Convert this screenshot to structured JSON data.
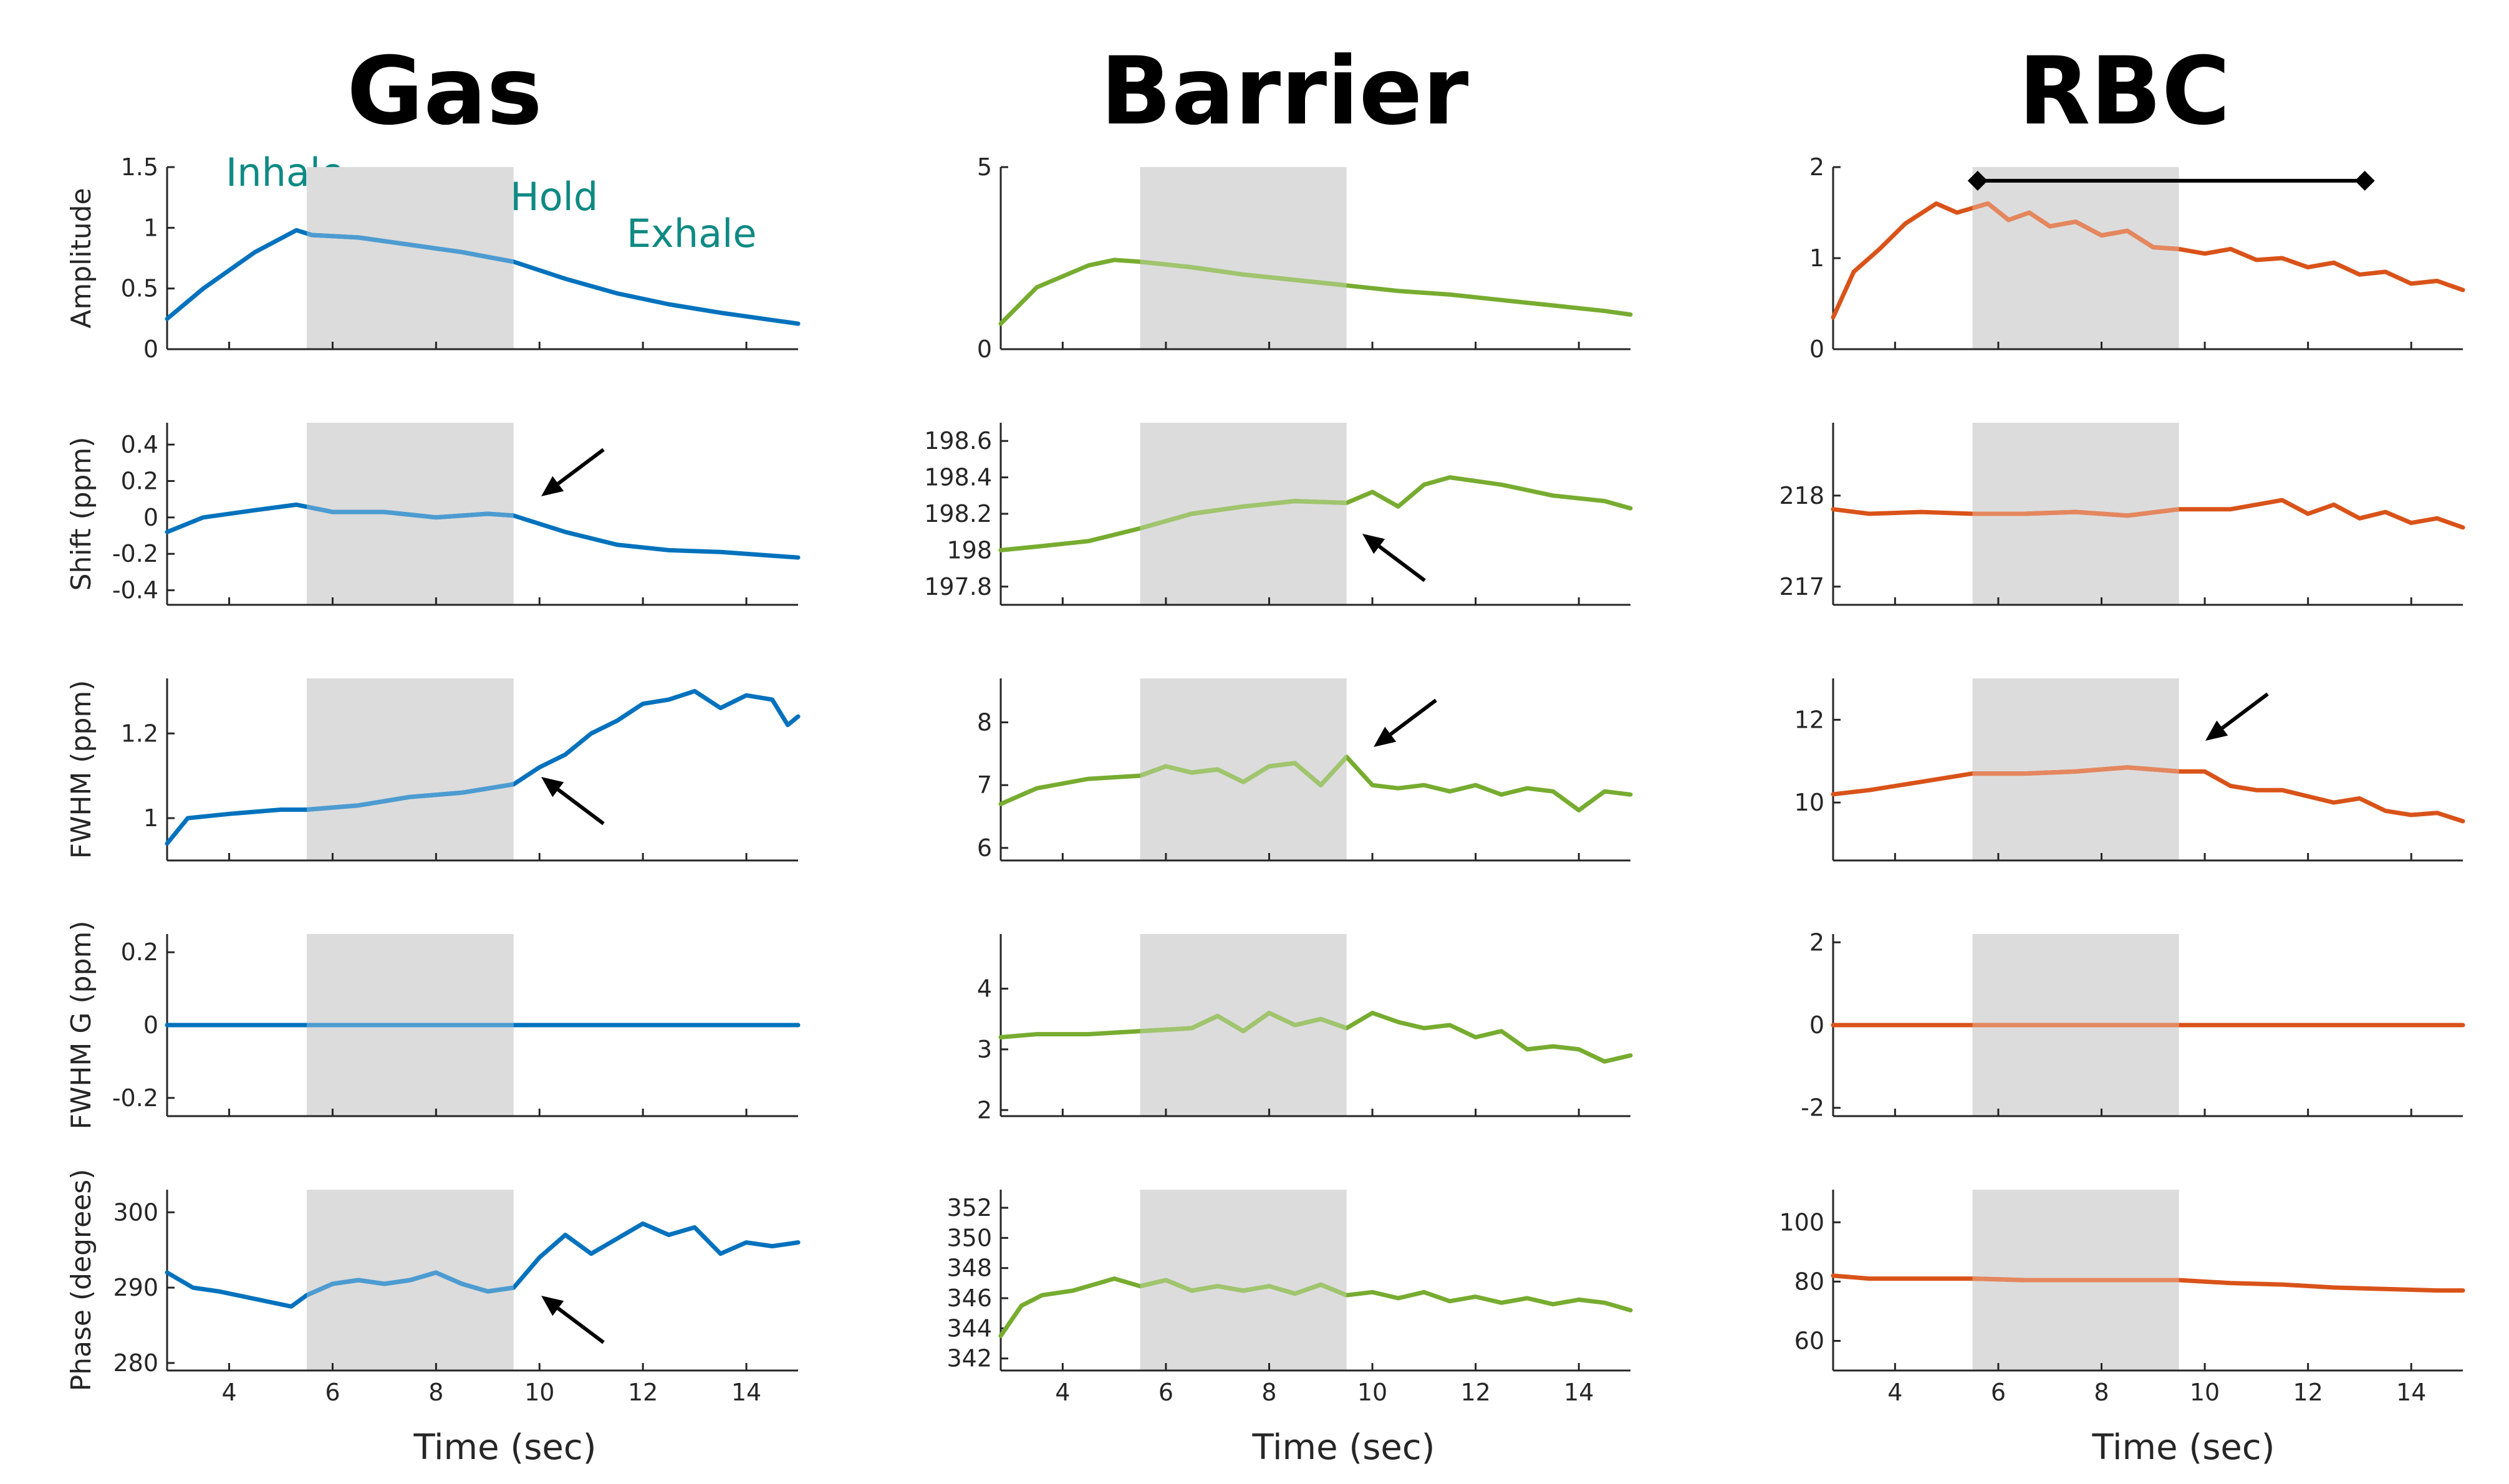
{
  "figure": {
    "columns": [
      "Gas",
      "Barrier",
      "RBC"
    ],
    "xlabel": "Time (sec)",
    "xlim": [
      2.8,
      15
    ],
    "xticks": [
      4,
      6,
      8,
      10,
      12,
      14
    ],
    "breath_hold_window": [
      5.5,
      9.5
    ],
    "phase_labels": [
      "Inhale",
      "Breath Hold",
      "Exhale"
    ]
  },
  "chart_data": [
    {
      "type": "line",
      "column": "Gas",
      "ylabel": "Amplitude",
      "color": "#0072bd",
      "ylim": [
        0,
        1.5
      ],
      "yticks": [
        0,
        0.5,
        1,
        1.5
      ],
      "yticklabels": [
        "0",
        "0.5",
        "1",
        "1.5"
      ],
      "series": [
        {
          "name": "Gas Amplitude",
          "x": [
            2.8,
            3.5,
            4.5,
            5.3,
            5.6,
            6.5,
            7.5,
            8.5,
            9.5,
            10.5,
            11.5,
            12.5,
            13.5,
            14.5,
            15
          ],
          "y": [
            0.25,
            0.5,
            0.8,
            0.98,
            0.94,
            0.92,
            0.86,
            0.8,
            0.72,
            0.58,
            0.46,
            0.37,
            0.3,
            0.24,
            0.21
          ]
        }
      ]
    },
    {
      "type": "line",
      "column": "Barrier",
      "ylabel": "",
      "color": "#77ac30",
      "ylim": [
        0,
        5
      ],
      "yticks": [
        0,
        5
      ],
      "yticklabels": [
        "0",
        "5"
      ],
      "series": [
        {
          "name": "Barrier Amplitude",
          "x": [
            2.8,
            3.5,
            4.5,
            5.0,
            5.5,
            6.5,
            7.5,
            8.5,
            9.5,
            10.5,
            11.5,
            12.5,
            13.5,
            14.5,
            15
          ],
          "y": [
            0.7,
            1.7,
            2.3,
            2.45,
            2.4,
            2.25,
            2.05,
            1.9,
            1.75,
            1.6,
            1.5,
            1.35,
            1.2,
            1.05,
            0.95
          ]
        }
      ]
    },
    {
      "type": "line",
      "column": "RBC",
      "ylabel": "",
      "color": "#d95319",
      "ylim": [
        0,
        2
      ],
      "yticks": [
        0,
        1,
        2
      ],
      "yticklabels": [
        "0",
        "1",
        "2"
      ],
      "annotation": "hold-duration-bar",
      "series": [
        {
          "name": "RBC Amplitude",
          "x": [
            2.8,
            3.2,
            3.7,
            4.2,
            4.8,
            5.2,
            5.5,
            5.8,
            6.2,
            6.6,
            7.0,
            7.5,
            8.0,
            8.5,
            9.0,
            9.5,
            10.0,
            10.5,
            11.0,
            11.5,
            12.0,
            12.5,
            13.0,
            13.5,
            14.0,
            14.5,
            15.0
          ],
          "y": [
            0.35,
            0.85,
            1.1,
            1.38,
            1.6,
            1.5,
            1.55,
            1.6,
            1.42,
            1.5,
            1.35,
            1.4,
            1.25,
            1.3,
            1.12,
            1.1,
            1.05,
            1.1,
            0.98,
            1.0,
            0.9,
            0.95,
            0.82,
            0.85,
            0.72,
            0.75,
            0.65
          ]
        }
      ]
    },
    {
      "type": "line",
      "column": "Gas",
      "ylabel": "Shift (ppm)",
      "color": "#0072bd",
      "ylim": [
        -0.48,
        0.52
      ],
      "yticks": [
        -0.4,
        -0.2,
        0,
        0.2,
        0.4
      ],
      "yticklabels": [
        "-0.4",
        "-0.2",
        "0",
        "0.2",
        "0.4"
      ],
      "arrow": "down-left",
      "series": [
        {
          "name": "Gas Shift",
          "x": [
            2.8,
            3.5,
            4.5,
            5.3,
            6.0,
            7.0,
            8.0,
            9.0,
            9.5,
            10.5,
            11.5,
            12.5,
            13.5,
            14.5,
            15
          ],
          "y": [
            -0.08,
            0.0,
            0.04,
            0.07,
            0.03,
            0.03,
            0.0,
            0.02,
            0.01,
            -0.08,
            -0.15,
            -0.18,
            -0.19,
            -0.21,
            -0.22
          ]
        }
      ]
    },
    {
      "type": "line",
      "column": "Barrier",
      "ylabel": "",
      "color": "#77ac30",
      "ylim": [
        197.7,
        198.7
      ],
      "yticks": [
        197.8,
        198,
        198.2,
        198.4,
        198.6
      ],
      "yticklabels": [
        "197.8",
        "198",
        "198.2",
        "198.4",
        "198.6"
      ],
      "arrow": "up-left",
      "series": [
        {
          "name": "Barrier Shift",
          "x": [
            2.8,
            3.5,
            4.5,
            5.5,
            6.5,
            7.5,
            8.5,
            9.5,
            10.0,
            10.5,
            11.0,
            11.5,
            12.5,
            13.5,
            14.5,
            15
          ],
          "y": [
            198.0,
            198.02,
            198.05,
            198.12,
            198.2,
            198.24,
            198.27,
            198.26,
            198.32,
            198.24,
            198.36,
            198.4,
            198.36,
            198.3,
            198.27,
            198.23
          ]
        }
      ]
    },
    {
      "type": "line",
      "column": "RBC",
      "ylabel": "",
      "color": "#d95319",
      "ylim": [
        216.8,
        218.8
      ],
      "yticks": [
        217,
        218
      ],
      "yticklabels": [
        "217",
        "218"
      ],
      "series": [
        {
          "name": "RBC Shift",
          "x": [
            2.8,
            3.5,
            4.5,
            5.5,
            6.5,
            7.5,
            8.5,
            9.5,
            10.5,
            11.5,
            12.0,
            12.5,
            13.0,
            13.5,
            14.0,
            14.5,
            15
          ],
          "y": [
            217.85,
            217.8,
            217.82,
            217.8,
            217.8,
            217.82,
            217.78,
            217.85,
            217.85,
            217.95,
            217.8,
            217.9,
            217.75,
            217.82,
            217.7,
            217.75,
            217.65
          ]
        }
      ]
    },
    {
      "type": "line",
      "column": "Gas",
      "ylabel": "FWHM (ppm)",
      "color": "#0072bd",
      "ylim": [
        0.9,
        1.33
      ],
      "yticks": [
        1,
        1.2
      ],
      "yticklabels": [
        "1",
        "1.2"
      ],
      "arrow": "up-left",
      "series": [
        {
          "name": "Gas FWHM",
          "x": [
            2.8,
            3.2,
            4.0,
            5.0,
            5.5,
            6.5,
            7.5,
            8.5,
            9.5,
            10.0,
            10.5,
            11.0,
            11.5,
            12.0,
            12.5,
            13.0,
            13.5,
            14.0,
            14.5,
            14.8,
            15
          ],
          "y": [
            0.94,
            1.0,
            1.01,
            1.02,
            1.02,
            1.03,
            1.05,
            1.06,
            1.08,
            1.12,
            1.15,
            1.2,
            1.23,
            1.27,
            1.28,
            1.3,
            1.26,
            1.29,
            1.28,
            1.22,
            1.24
          ]
        }
      ]
    },
    {
      "type": "line",
      "column": "Barrier",
      "ylabel": "",
      "color": "#77ac30",
      "ylim": [
        5.8,
        8.7
      ],
      "yticks": [
        6,
        7,
        8
      ],
      "yticklabels": [
        "6",
        "7",
        "8"
      ],
      "arrow": "down-left",
      "series": [
        {
          "name": "Barrier FWHM",
          "x": [
            2.8,
            3.5,
            4.5,
            5.5,
            6.0,
            6.5,
            7.0,
            7.5,
            8.0,
            8.5,
            9.0,
            9.5,
            10.0,
            10.5,
            11.0,
            11.5,
            12.0,
            12.5,
            13.0,
            13.5,
            14.0,
            14.5,
            15
          ],
          "y": [
            6.7,
            6.95,
            7.1,
            7.15,
            7.3,
            7.2,
            7.25,
            7.05,
            7.3,
            7.35,
            7.0,
            7.45,
            7.0,
            6.95,
            7.0,
            6.9,
            7.0,
            6.85,
            6.95,
            6.9,
            6.6,
            6.9,
            6.85
          ]
        }
      ]
    },
    {
      "type": "line",
      "column": "RBC",
      "ylabel": "",
      "color": "#d95319",
      "ylim": [
        8.6,
        13
      ],
      "yticks": [
        10,
        12
      ],
      "yticklabels": [
        "10",
        "12"
      ],
      "arrow": "down-left",
      "series": [
        {
          "name": "RBC FWHM",
          "x": [
            2.8,
            3.5,
            4.5,
            5.5,
            6.5,
            7.5,
            8.5,
            9.5,
            10.0,
            10.5,
            11.0,
            11.5,
            12.0,
            12.5,
            13.0,
            13.5,
            14.0,
            14.5,
            15
          ],
          "y": [
            10.2,
            10.3,
            10.5,
            10.7,
            10.7,
            10.75,
            10.85,
            10.75,
            10.75,
            10.4,
            10.3,
            10.3,
            10.15,
            10.0,
            10.1,
            9.8,
            9.7,
            9.75,
            9.55
          ]
        }
      ]
    },
    {
      "type": "line",
      "column": "Gas",
      "ylabel": "FWHM G (ppm)",
      "color": "#0072bd",
      "ylim": [
        -0.25,
        0.25
      ],
      "yticks": [
        -0.2,
        0,
        0.2
      ],
      "yticklabels": [
        "-0.2",
        "0",
        "0.2"
      ],
      "series": [
        {
          "name": "Gas FWHM G",
          "x": [
            2.8,
            15
          ],
          "y": [
            0,
            0
          ]
        }
      ]
    },
    {
      "type": "line",
      "column": "Barrier",
      "ylabel": "",
      "color": "#77ac30",
      "ylim": [
        1.9,
        4.9
      ],
      "yticks": [
        2,
        3,
        4
      ],
      "yticklabels": [
        "2",
        "3",
        "4"
      ],
      "series": [
        {
          "name": "Barrier FWHM G",
          "x": [
            2.8,
            3.5,
            4.5,
            5.5,
            6.5,
            7.0,
            7.5,
            8.0,
            8.5,
            9.0,
            9.5,
            10.0,
            10.5,
            11.0,
            11.5,
            12.0,
            12.5,
            13.0,
            13.5,
            14.0,
            14.5,
            15
          ],
          "y": [
            3.2,
            3.25,
            3.25,
            3.3,
            3.35,
            3.55,
            3.3,
            3.6,
            3.4,
            3.5,
            3.35,
            3.6,
            3.45,
            3.35,
            3.4,
            3.2,
            3.3,
            3.0,
            3.05,
            3.0,
            2.8,
            2.9
          ]
        }
      ]
    },
    {
      "type": "line",
      "column": "RBC",
      "ylabel": "",
      "color": "#d95319",
      "ylim": [
        -2.2,
        2.2
      ],
      "yticks": [
        -2,
        0,
        2
      ],
      "yticklabels": [
        "-2",
        "0",
        "2"
      ],
      "series": [
        {
          "name": "RBC FWHM G",
          "x": [
            2.8,
            15
          ],
          "y": [
            0,
            0
          ]
        }
      ]
    },
    {
      "type": "line",
      "column": "Gas",
      "ylabel": "Phase (degrees)",
      "color": "#0072bd",
      "ylim": [
        279,
        303
      ],
      "yticks": [
        280,
        290,
        300
      ],
      "yticklabels": [
        "280",
        "290",
        "300"
      ],
      "arrow": "up-left",
      "series": [
        {
          "name": "Gas Phase",
          "x": [
            2.8,
            3.3,
            3.8,
            4.5,
            5.2,
            5.5,
            6.0,
            6.5,
            7.0,
            7.5,
            8.0,
            8.5,
            9.0,
            9.5,
            10.0,
            10.5,
            11.0,
            11.5,
            12.0,
            12.5,
            13.0,
            13.5,
            14.0,
            14.5,
            15
          ],
          "y": [
            292,
            290,
            289.5,
            288.5,
            287.5,
            289,
            290.5,
            291,
            290.5,
            291,
            292,
            290.5,
            289.5,
            290,
            294,
            297,
            294.5,
            296.5,
            298.5,
            297,
            298,
            294.5,
            296,
            295.5,
            296
          ]
        }
      ]
    },
    {
      "type": "line",
      "column": "Barrier",
      "ylabel": "",
      "color": "#77ac30",
      "ylim": [
        341.2,
        353.2
      ],
      "yticks": [
        342,
        344,
        346,
        348,
        350,
        352
      ],
      "yticklabels": [
        "342",
        "344",
        "346",
        "348",
        "350",
        "352"
      ],
      "series": [
        {
          "name": "Barrier Phase",
          "x": [
            2.8,
            3.2,
            3.6,
            4.2,
            5.0,
            5.5,
            6.0,
            6.5,
            7.0,
            7.5,
            8.0,
            8.5,
            9.0,
            9.5,
            10.0,
            10.5,
            11.0,
            11.5,
            12.0,
            12.5,
            13.0,
            13.5,
            14.0,
            14.5,
            15
          ],
          "y": [
            343.5,
            345.5,
            346.2,
            346.5,
            347.3,
            346.8,
            347.2,
            346.5,
            346.8,
            346.5,
            346.8,
            346.3,
            346.9,
            346.2,
            346.4,
            346.0,
            346.4,
            345.8,
            346.1,
            345.7,
            346.0,
            345.6,
            345.9,
            345.7,
            345.2
          ]
        }
      ]
    },
    {
      "type": "line",
      "column": "RBC",
      "ylabel": "",
      "color": "#d95319",
      "ylim": [
        50,
        111
      ],
      "yticks": [
        60,
        80,
        100
      ],
      "yticklabels": [
        "60",
        "80",
        "100"
      ],
      "series": [
        {
          "name": "RBC Phase",
          "x": [
            2.8,
            3.5,
            4.5,
            5.5,
            6.5,
            7.5,
            8.5,
            9.5,
            10.5,
            11.5,
            12.5,
            13.5,
            14.5,
            15
          ],
          "y": [
            82,
            81,
            81,
            81,
            80.5,
            80.5,
            80.5,
            80.5,
            79.5,
            79,
            78,
            77.5,
            77,
            77
          ]
        }
      ]
    }
  ]
}
